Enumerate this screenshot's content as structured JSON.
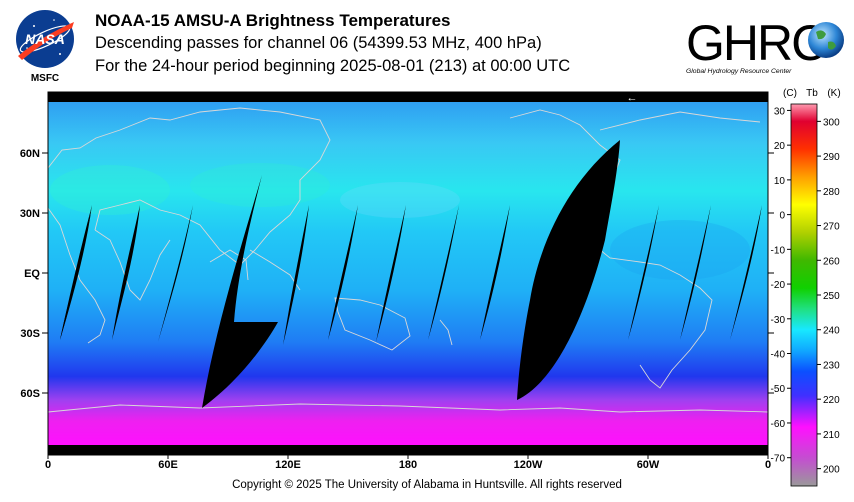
{
  "header": {
    "title": "NOAA-15 AMSU-A Brightness Temperatures",
    "line2": "Descending passes for channel 06 (54399.53 MHz, 400 hPa)",
    "line3": "For the 24-hour period beginning 2025-08-01 (213) at 00:00 UTC"
  },
  "logos": {
    "nasa_text": "NASA",
    "msfc_text": "MSFC",
    "ghrc_text": "GHRC",
    "ghrc_tagline": "Global Hydrology Resource Center"
  },
  "map": {
    "lat_labels": [
      "60N",
      "30N",
      "EQ",
      "30S",
      "60S"
    ],
    "lat_values": [
      60,
      30,
      0,
      -30,
      -60
    ],
    "lon_labels": [
      "0",
      "60E",
      "120E",
      "180",
      "120W",
      "60W",
      "0"
    ],
    "lon_values": [
      0,
      60,
      120,
      180,
      240,
      300,
      360
    ],
    "arrow_glyph": "←",
    "missing_color": "#000000"
  },
  "colorbar": {
    "c_header": "(C)",
    "tb_header": "Tb",
    "k_header": "(K)",
    "celsius_labels": [
      "30",
      "20",
      "10",
      "0",
      "-10",
      "-20",
      "-30",
      "-40",
      "-50",
      "-60",
      "-70"
    ],
    "celsius_values": [
      30,
      20,
      10,
      0,
      -10,
      -20,
      -30,
      -40,
      -50,
      -60,
      -70
    ],
    "kelvin_labels": [
      "300",
      "290",
      "280",
      "270",
      "260",
      "250",
      "240",
      "230",
      "220",
      "210",
      "200"
    ],
    "kelvin_values": [
      300,
      290,
      280,
      270,
      260,
      250,
      240,
      230,
      220,
      210,
      200
    ],
    "range_k": [
      195,
      305
    ],
    "gradient": [
      {
        "k": 195,
        "color": "#9a9a9a"
      },
      {
        "k": 203,
        "color": "#c44ed0"
      },
      {
        "k": 212,
        "color": "#ff10ff"
      },
      {
        "k": 221,
        "color": "#4030ff"
      },
      {
        "k": 228,
        "color": "#0b50ff"
      },
      {
        "k": 234,
        "color": "#10a8ff"
      },
      {
        "k": 240,
        "color": "#18e8ff"
      },
      {
        "k": 246,
        "color": "#20e080"
      },
      {
        "k": 252,
        "color": "#10d000"
      },
      {
        "k": 260,
        "color": "#40b800"
      },
      {
        "k": 268,
        "color": "#b0d000"
      },
      {
        "k": 276,
        "color": "#ffff00"
      },
      {
        "k": 284,
        "color": "#ffa000"
      },
      {
        "k": 292,
        "color": "#ff3000"
      },
      {
        "k": 300,
        "color": "#e00030"
      },
      {
        "k": 305,
        "color": "#ff9ab0"
      }
    ]
  },
  "footer": {
    "copyright": "Copyright © 2025 The University of Alabama in Huntsville.  All rights reserved"
  }
}
